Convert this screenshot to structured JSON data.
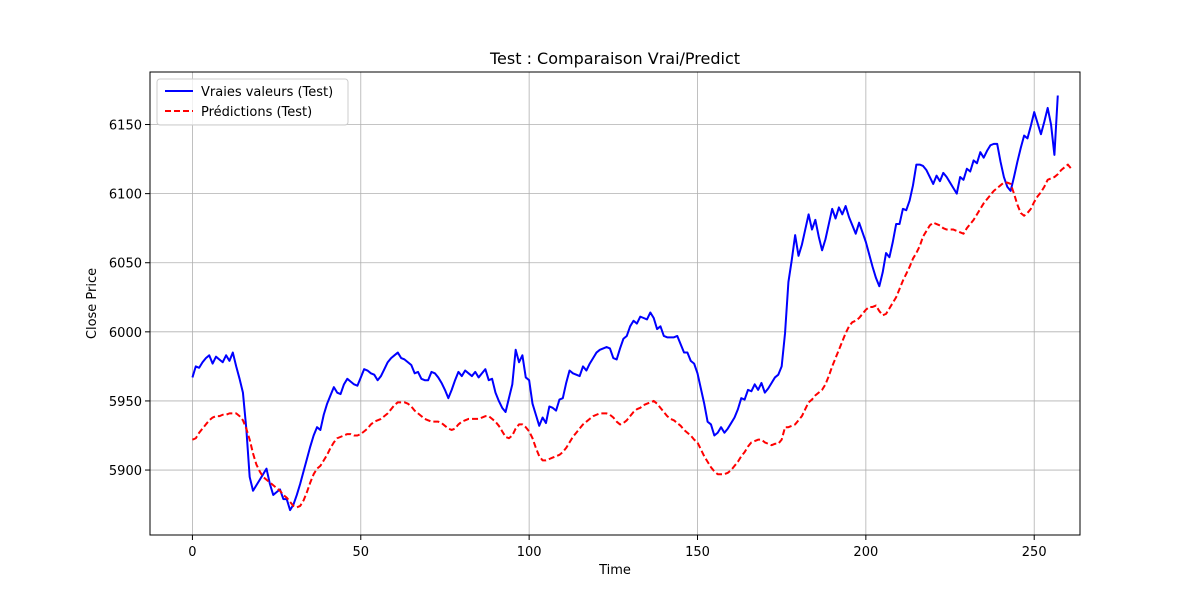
{
  "chart_data": {
    "type": "line",
    "title": "Test : Comparaison Vrai/Predict",
    "xlabel": "Time",
    "ylabel": "Close Price",
    "xlim": [
      -12.6,
      263.6
    ],
    "ylim": [
      5853,
      6188
    ],
    "xticks": [
      0,
      50,
      100,
      150,
      200,
      250
    ],
    "yticks": [
      5900,
      5950,
      6000,
      6050,
      6100,
      6150
    ],
    "grid": true,
    "legend_position": "top-left",
    "series": [
      {
        "name": "Vraies valeurs (Test)",
        "color": "#0000ff",
        "style": "solid",
        "x_start": 0,
        "values": [
          5967,
          5975,
          5974,
          5978,
          5981,
          5983,
          5977,
          5982,
          5980,
          5978,
          5983,
          5979,
          5985,
          5975,
          5966,
          5956,
          5930,
          5895,
          5885,
          5889,
          5893,
          5897,
          5901,
          5890,
          5882,
          5884,
          5886,
          5879,
          5879,
          5871,
          5875,
          5882,
          5890,
          5899,
          5908,
          5917,
          5925,
          5931,
          5929,
          5940,
          5948,
          5954,
          5960,
          5956,
          5955,
          5962,
          5966,
          5964,
          5962,
          5961,
          5967,
          5973,
          5972,
          5970,
          5969,
          5965,
          5968,
          5973,
          5978,
          5981,
          5983,
          5985,
          5981,
          5980,
          5978,
          5976,
          5970,
          5971,
          5966,
          5965,
          5965,
          5971,
          5970,
          5967,
          5963,
          5958,
          5952,
          5958,
          5965,
          5971,
          5968,
          5972,
          5970,
          5968,
          5971,
          5967,
          5970,
          5973,
          5965,
          5966,
          5956,
          5950,
          5945,
          5942,
          5952,
          5962,
          5987,
          5978,
          5983,
          5967,
          5965,
          5948,
          5940,
          5932,
          5938,
          5934,
          5946,
          5945,
          5943,
          5951,
          5952,
          5963,
          5972,
          5970,
          5969,
          5968,
          5975,
          5972,
          5977,
          5981,
          5985,
          5987,
          5988,
          5989,
          5988,
          5981,
          5980,
          5988,
          5995,
          5997,
          6004,
          6008,
          6006,
          6011,
          6010,
          6009,
          6014,
          6010,
          6002,
          6004,
          5997,
          5996,
          5996,
          5996,
          5997,
          5991,
          5985,
          5985,
          5979,
          5977,
          5970,
          5959,
          5948,
          5935,
          5933,
          5925,
          5927,
          5931,
          5927,
          5930,
          5934,
          5938,
          5944,
          5952,
          5951,
          5958,
          5957,
          5962,
          5958,
          5963,
          5956,
          5959,
          5963,
          5967,
          5969,
          5975,
          5999,
          6036,
          6052,
          6070,
          6055,
          6063,
          6074,
          6085,
          6074,
          6081,
          6069,
          6059,
          6067,
          6078,
          6089,
          6082,
          6090,
          6085,
          6091,
          6083,
          6077,
          6071,
          6079,
          6072,
          6065,
          6056,
          6047,
          6039,
          6033,
          6043,
          6057,
          6054,
          6065,
          6078,
          6078,
          6089,
          6088,
          6095,
          6106,
          6121,
          6121,
          6120,
          6117,
          6112,
          6107,
          6113,
          6109,
          6115,
          6112,
          6108,
          6104,
          6100,
          6112,
          6110,
          6118,
          6116,
          6124,
          6122,
          6130,
          6126,
          6131,
          6135,
          6136,
          6136,
          6123,
          6112,
          6105,
          6102,
          6112,
          6123,
          6133,
          6142,
          6140,
          6149,
          6159,
          6151,
          6143,
          6152,
          6162,
          6150,
          6128,
          6171
        ]
      },
      {
        "name": "Prédictions (Test)",
        "color": "#ff0000",
        "style": "dashed",
        "x_start": 0,
        "values": [
          5922,
          5923,
          5927,
          5930,
          5933,
          5936,
          5938,
          5939,
          5939,
          5940,
          5940,
          5941,
          5941,
          5941,
          5939,
          5936,
          5930,
          5922,
          5912,
          5904,
          5899,
          5895,
          5893,
          5891,
          5889,
          5887,
          5885,
          5882,
          5880,
          5877,
          5874,
          5873,
          5874,
          5878,
          5884,
          5891,
          5897,
          5901,
          5903,
          5907,
          5911,
          5916,
          5920,
          5923,
          5924,
          5925,
          5926,
          5926,
          5925,
          5925,
          5926,
          5928,
          5930,
          5933,
          5935,
          5936,
          5937,
          5939,
          5941,
          5944,
          5947,
          5949,
          5949,
          5949,
          5948,
          5946,
          5943,
          5941,
          5939,
          5937,
          5936,
          5935,
          5935,
          5935,
          5934,
          5932,
          5930,
          5929,
          5930,
          5933,
          5935,
          5936,
          5937,
          5937,
          5937,
          5937,
          5938,
          5939,
          5939,
          5937,
          5935,
          5932,
          5928,
          5924,
          5923,
          5925,
          5930,
          5933,
          5933,
          5931,
          5928,
          5923,
          5916,
          5910,
          5907,
          5907,
          5908,
          5909,
          5910,
          5911,
          5913,
          5916,
          5920,
          5924,
          5927,
          5930,
          5933,
          5935,
          5937,
          5939,
          5940,
          5941,
          5941,
          5941,
          5940,
          5938,
          5935,
          5933,
          5934,
          5936,
          5939,
          5942,
          5944,
          5945,
          5947,
          5948,
          5949,
          5950,
          5948,
          5945,
          5942,
          5939,
          5937,
          5936,
          5934,
          5932,
          5929,
          5927,
          5925,
          5922,
          5920,
          5915,
          5910,
          5906,
          5902,
          5899,
          5897,
          5897,
          5897,
          5898,
          5900,
          5903,
          5906,
          5910,
          5913,
          5917,
          5920,
          5921,
          5922,
          5922,
          5920,
          5919,
          5918,
          5919,
          5919,
          5922,
          5931,
          5931,
          5932,
          5933,
          5936,
          5939,
          5944,
          5949,
          5951,
          5954,
          5956,
          5958,
          5962,
          5968,
          5975,
          5981,
          5987,
          5993,
          5999,
          6004,
          6007,
          6008,
          6010,
          6013,
          6016,
          6018,
          6018,
          6019,
          6015,
          6012,
          6013,
          6017,
          6021,
          6025,
          6031,
          6037,
          6042,
          6047,
          6053,
          6057,
          6062,
          6069,
          6073,
          6077,
          6079,
          6078,
          6077,
          6075,
          6074,
          6074,
          6074,
          6073,
          6072,
          6071,
          6075,
          6078,
          6081,
          6085,
          6089,
          6093,
          6096,
          6099,
          6102,
          6104,
          6106,
          6108,
          6108,
          6107,
          6100,
          6092,
          6086,
          6084,
          6086,
          6089,
          6094,
          6098,
          6101,
          6105,
          6110,
          6111,
          6112,
          6114,
          6117,
          6119,
          6121,
          6118
        ]
      }
    ]
  }
}
